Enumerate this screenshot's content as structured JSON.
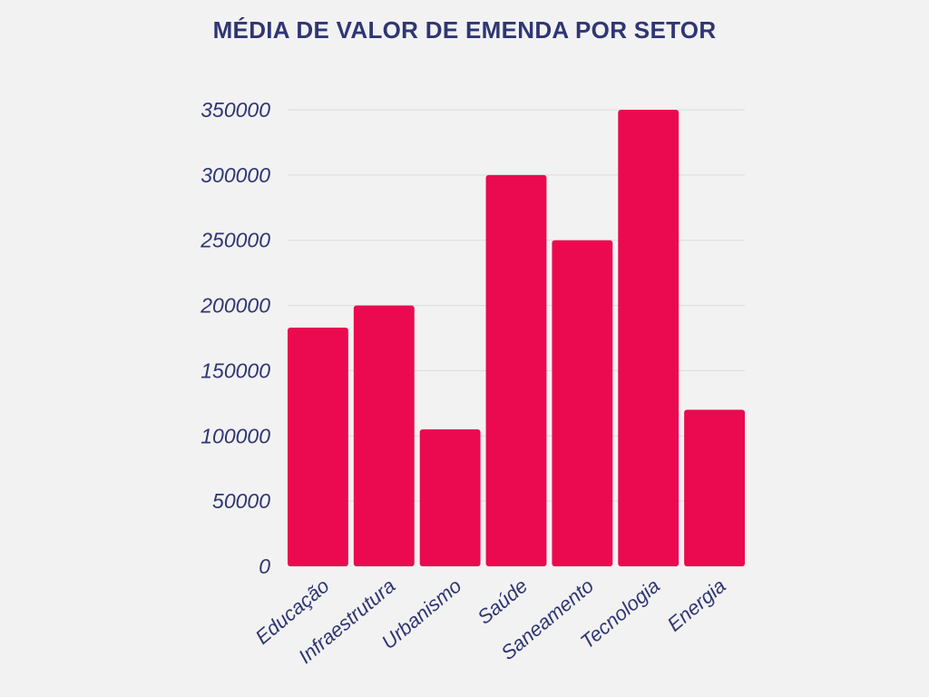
{
  "colors": {
    "background": "#f2f2f2",
    "bar": "#eb0a4f",
    "text": "#2f3673",
    "grid": "#dcdcdc"
  },
  "chart_data": {
    "type": "bar",
    "title": "MÉDIA DE VALOR DE EMENDA POR SETOR",
    "xlabel": "",
    "ylabel": "",
    "categories": [
      "Educação",
      "Infraestrutura",
      "Urbanismo",
      "Saúde",
      "Saneamento",
      "Tecnologia",
      "Energia"
    ],
    "values": [
      183000,
      200000,
      105000,
      300000,
      250000,
      350000,
      120000
    ],
    "ylim": [
      0,
      350000
    ],
    "yticks": [
      "0",
      "50000",
      "100000",
      "150000",
      "200000",
      "250000",
      "300000",
      "350000"
    ],
    "grid": true,
    "legend": "none"
  }
}
